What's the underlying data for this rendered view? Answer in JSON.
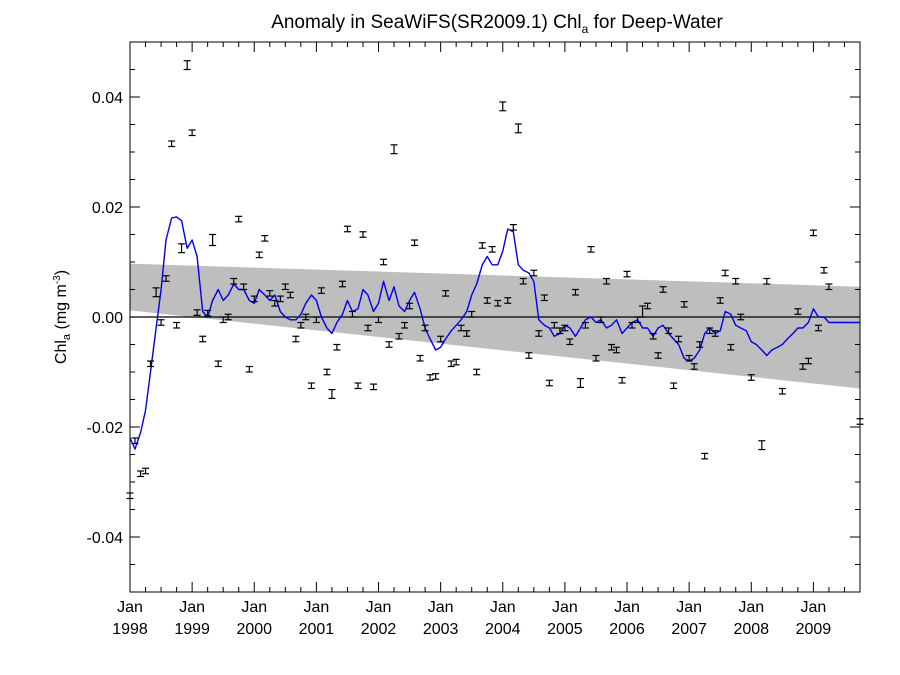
{
  "chart_data": {
    "type": "scatter",
    "title_main": "Anomaly in SeaWiFS(SR2009.1) Chl",
    "title_sub": "a",
    "title_tail": " for Deep-Water",
    "ylabel_main": "Chl",
    "ylabel_sub": "a",
    "ylabel_units_pre": " (mg m",
    "ylabel_units_sup": "-3",
    "ylabel_units_post": ")",
    "xlim": [
      1998.0,
      2009.75
    ],
    "ylim": [
      -0.05,
      0.05
    ],
    "yticks": [
      {
        "value": 0.04,
        "label": "0.04"
      },
      {
        "value": 0.02,
        "label": "0.02"
      },
      {
        "value": 0.0,
        "label": "0.00"
      },
      {
        "value": -0.02,
        "label": "-0.02"
      },
      {
        "value": -0.04,
        "label": "-0.04"
      }
    ],
    "xticks": [
      {
        "value": 1998,
        "month": "Jan",
        "year": "1998"
      },
      {
        "value": 1999,
        "month": "Jan",
        "year": "1999"
      },
      {
        "value": 2000,
        "month": "Jan",
        "year": "2000"
      },
      {
        "value": 2001,
        "month": "Jan",
        "year": "2001"
      },
      {
        "value": 2002,
        "month": "Jan",
        "year": "2002"
      },
      {
        "value": 2003,
        "month": "Jan",
        "year": "2003"
      },
      {
        "value": 2004,
        "month": "Jan",
        "year": "2004"
      },
      {
        "value": 2005,
        "month": "Jan",
        "year": "2005"
      },
      {
        "value": 2006,
        "month": "Jan",
        "year": "2006"
      },
      {
        "value": 2007,
        "month": "Jan",
        "year": "2007"
      },
      {
        "value": 2008,
        "month": "Jan",
        "year": "2008"
      },
      {
        "value": 2009,
        "month": "Jan",
        "year": "2009"
      }
    ],
    "zero_line": 0.0,
    "confidence_band": {
      "x": [
        1998.0,
        2009.75
      ],
      "upper": [
        0.0097,
        0.0055
      ],
      "lower": [
        0.0012,
        -0.013
      ]
    },
    "series": [
      {
        "type": "errorbar",
        "color": "#000000",
        "points": [
          [
            1998.0,
            -0.0325,
            0.0005
          ],
          [
            1998.08,
            -0.0225,
            0.0005
          ],
          [
            1998.17,
            -0.0285,
            0.0005
          ],
          [
            1998.25,
            -0.028,
            0.0005
          ],
          [
            1998.33,
            -0.0085,
            0.0005
          ],
          [
            1998.42,
            0.0045,
            0.0008
          ],
          [
            1998.5,
            -0.001,
            0.0005
          ],
          [
            1998.58,
            0.007,
            0.0005
          ],
          [
            1998.67,
            0.0315,
            0.0005
          ],
          [
            1998.75,
            -0.0015,
            0.0005
          ],
          [
            1998.83,
            0.0125,
            0.0008
          ],
          [
            1998.92,
            0.0458,
            0.0008
          ],
          [
            1999.0,
            0.0335,
            0.0005
          ],
          [
            1999.08,
            0.0008,
            0.0005
          ],
          [
            1999.17,
            -0.004,
            0.0005
          ],
          [
            1999.25,
            0.0007,
            0.0005
          ],
          [
            1999.33,
            0.014,
            0.001
          ],
          [
            1999.42,
            -0.0085,
            0.0005
          ],
          [
            1999.5,
            -0.0005,
            0.0005
          ],
          [
            1999.58,
            0.0,
            0.0005
          ],
          [
            1999.67,
            0.0065,
            0.0005
          ],
          [
            1999.75,
            0.0178,
            0.0005
          ],
          [
            1999.83,
            0.0055,
            0.0005
          ],
          [
            1999.92,
            -0.0095,
            0.0005
          ],
          [
            2000.0,
            0.0033,
            0.0005
          ],
          [
            2000.08,
            0.0113,
            0.0005
          ],
          [
            2000.17,
            0.0143,
            0.0005
          ],
          [
            2000.25,
            0.0043,
            0.0005
          ],
          [
            2000.33,
            0.0025,
            0.0005
          ],
          [
            2000.42,
            0.0033,
            0.0005
          ],
          [
            2000.5,
            0.0055,
            0.0005
          ],
          [
            2000.58,
            0.004,
            0.0005
          ],
          [
            2000.67,
            -0.004,
            0.0005
          ],
          [
            2000.75,
            -0.0015,
            0.0005
          ],
          [
            2000.83,
            0.0,
            0.0005
          ],
          [
            2000.92,
            -0.0125,
            0.0005
          ],
          [
            2001.0,
            -0.0005,
            0.0005
          ],
          [
            2001.08,
            0.0048,
            0.0005
          ],
          [
            2001.17,
            -0.01,
            0.0005
          ],
          [
            2001.25,
            -0.014,
            0.0008
          ],
          [
            2001.33,
            -0.0055,
            0.0005
          ],
          [
            2001.42,
            0.006,
            0.0005
          ],
          [
            2001.5,
            0.016,
            0.0005
          ],
          [
            2001.58,
            0.0005,
            0.0005
          ],
          [
            2001.67,
            -0.0125,
            0.0005
          ],
          [
            2001.75,
            0.015,
            0.0005
          ],
          [
            2001.83,
            -0.002,
            0.0005
          ],
          [
            2001.92,
            -0.0127,
            0.0005
          ],
          [
            2002.0,
            -0.0005,
            0.0005
          ],
          [
            2002.08,
            0.01,
            0.0005
          ],
          [
            2002.17,
            -0.005,
            0.0005
          ],
          [
            2002.25,
            0.0305,
            0.0008
          ],
          [
            2002.33,
            -0.0035,
            0.0005
          ],
          [
            2002.42,
            -0.0015,
            0.0005
          ],
          [
            2002.5,
            0.002,
            0.0005
          ],
          [
            2002.58,
            0.0135,
            0.0005
          ],
          [
            2002.67,
            -0.0075,
            0.0005
          ],
          [
            2002.75,
            -0.002,
            0.0005
          ],
          [
            2002.83,
            -0.011,
            0.0005
          ],
          [
            2002.92,
            -0.0108,
            0.0005
          ],
          [
            2003.0,
            -0.004,
            0.0005
          ],
          [
            2003.08,
            0.0043,
            0.0005
          ],
          [
            2003.17,
            -0.0085,
            0.0005
          ],
          [
            2003.25,
            -0.0082,
            0.0005
          ],
          [
            2003.33,
            -0.002,
            0.0005
          ],
          [
            2003.42,
            -0.003,
            0.0005
          ],
          [
            2003.5,
            0.0005,
            0.0005
          ],
          [
            2003.58,
            -0.01,
            0.0005
          ],
          [
            2003.67,
            0.013,
            0.0005
          ],
          [
            2003.75,
            0.003,
            0.0005
          ],
          [
            2003.83,
            0.0123,
            0.0005
          ],
          [
            2003.92,
            0.0025,
            0.0005
          ],
          [
            2004.0,
            0.0383,
            0.0008
          ],
          [
            2004.08,
            0.003,
            0.0005
          ],
          [
            2004.17,
            0.0163,
            0.0005
          ],
          [
            2004.25,
            0.0343,
            0.0008
          ],
          [
            2004.33,
            0.0065,
            0.0005
          ],
          [
            2004.42,
            -0.007,
            0.0005
          ],
          [
            2004.5,
            0.008,
            0.0005
          ],
          [
            2004.58,
            -0.003,
            0.0005
          ],
          [
            2004.67,
            0.0035,
            0.0005
          ],
          [
            2004.75,
            -0.012,
            0.0005
          ],
          [
            2004.83,
            -0.0015,
            0.0005
          ],
          [
            2004.92,
            -0.0025,
            0.0005
          ],
          [
            2005.0,
            -0.002,
            0.0005
          ],
          [
            2005.08,
            -0.0045,
            0.0005
          ],
          [
            2005.17,
            0.0045,
            0.0005
          ],
          [
            2005.25,
            -0.012,
            0.0008
          ],
          [
            2005.33,
            -0.0015,
            0.0005
          ],
          [
            2005.42,
            0.0123,
            0.0005
          ],
          [
            2005.5,
            -0.0075,
            0.0005
          ],
          [
            2005.58,
            -0.0005,
            0.0005
          ],
          [
            2005.67,
            0.0065,
            0.0005
          ],
          [
            2005.75,
            -0.0055,
            0.0005
          ],
          [
            2005.83,
            -0.006,
            0.0005
          ],
          [
            2005.92,
            -0.0115,
            0.0005
          ],
          [
            2006.0,
            0.0078,
            0.0005
          ],
          [
            2006.08,
            -0.0015,
            0.0005
          ],
          [
            2006.17,
            -0.0005,
            0.0005
          ],
          [
            2006.25,
            0.001,
            0.001
          ],
          [
            2006.33,
            0.002,
            0.0005
          ],
          [
            2006.42,
            -0.0035,
            0.0005
          ],
          [
            2006.5,
            -0.007,
            0.0005
          ],
          [
            2006.58,
            0.005,
            0.0005
          ],
          [
            2006.67,
            -0.0025,
            0.0005
          ],
          [
            2006.75,
            -0.0125,
            0.0005
          ],
          [
            2006.83,
            -0.004,
            0.0005
          ],
          [
            2006.92,
            0.0023,
            0.0005
          ],
          [
            2007.0,
            -0.0075,
            0.0005
          ],
          [
            2007.08,
            -0.009,
            0.0005
          ],
          [
            2007.17,
            -0.005,
            0.0005
          ],
          [
            2007.25,
            -0.0253,
            0.0005
          ],
          [
            2007.33,
            -0.0025,
            0.0005
          ],
          [
            2007.42,
            -0.003,
            0.0005
          ],
          [
            2007.5,
            0.003,
            0.0005
          ],
          [
            2007.58,
            0.008,
            0.0005
          ],
          [
            2007.67,
            -0.0055,
            0.0005
          ],
          [
            2007.75,
            0.0065,
            0.0005
          ],
          [
            2007.83,
            0.0,
            0.0005
          ],
          [
            2008.0,
            -0.011,
            0.0005
          ],
          [
            2008.17,
            -0.0233,
            0.0008
          ],
          [
            2008.25,
            0.0065,
            0.0005
          ],
          [
            2008.5,
            -0.0135,
            0.0005
          ],
          [
            2008.75,
            0.001,
            0.0005
          ],
          [
            2008.83,
            -0.009,
            0.0005
          ],
          [
            2008.92,
            -0.008,
            0.0005
          ],
          [
            2009.0,
            0.0153,
            0.0005
          ],
          [
            2009.08,
            -0.002,
            0.0005
          ],
          [
            2009.17,
            0.0085,
            0.0005
          ],
          [
            2009.25,
            0.0055,
            0.0005
          ],
          [
            2009.75,
            -0.019,
            0.0005
          ]
        ]
      },
      {
        "type": "line",
        "color": "#0000ee",
        "x": [
          1998.0,
          1998.08,
          1998.17,
          1998.25,
          1998.33,
          1998.42,
          1998.5,
          1998.58,
          1998.67,
          1998.75,
          1998.83,
          1998.92,
          1999.0,
          1999.08,
          1999.17,
          1999.25,
          1999.33,
          1999.42,
          1999.5,
          1999.58,
          1999.67,
          1999.75,
          1999.83,
          1999.92,
          2000.0,
          2000.08,
          2000.17,
          2000.25,
          2000.33,
          2000.42,
          2000.5,
          2000.58,
          2000.67,
          2000.75,
          2000.83,
          2000.92,
          2001.0,
          2001.08,
          2001.17,
          2001.25,
          2001.33,
          2001.42,
          2001.5,
          2001.58,
          2001.67,
          2001.75,
          2001.83,
          2001.92,
          2002.0,
          2002.08,
          2002.17,
          2002.25,
          2002.33,
          2002.42,
          2002.5,
          2002.58,
          2002.67,
          2002.75,
          2002.83,
          2002.92,
          2003.0,
          2003.08,
          2003.17,
          2003.25,
          2003.33,
          2003.42,
          2003.5,
          2003.58,
          2003.67,
          2003.75,
          2003.83,
          2003.92,
          2004.0,
          2004.08,
          2004.17,
          2004.25,
          2004.33,
          2004.42,
          2004.5,
          2004.58,
          2004.67,
          2004.75,
          2004.83,
          2004.92,
          2005.0,
          2005.08,
          2005.17,
          2005.25,
          2005.33,
          2005.42,
          2005.5,
          2005.58,
          2005.67,
          2005.75,
          2005.83,
          2005.92,
          2006.0,
          2006.08,
          2006.17,
          2006.25,
          2006.33,
          2006.42,
          2006.5,
          2006.58,
          2006.67,
          2006.75,
          2006.83,
          2006.92,
          2007.0,
          2007.08,
          2007.17,
          2007.25,
          2007.33,
          2007.42,
          2007.5,
          2007.58,
          2007.67,
          2007.75,
          2007.83,
          2007.92,
          2008.0,
          2008.08,
          2008.17,
          2008.25,
          2008.33,
          2008.42,
          2008.5,
          2008.58,
          2008.67,
          2008.75,
          2008.83,
          2008.92,
          2009.0,
          2009.08,
          2009.17,
          2009.25,
          2009.75
        ],
        "y": [
          -0.022,
          -0.024,
          -0.021,
          -0.017,
          -0.01,
          -0.002,
          0.005,
          0.014,
          0.018,
          0.0182,
          0.0175,
          0.0125,
          0.014,
          0.011,
          0.001,
          0.0,
          0.003,
          0.005,
          0.003,
          0.004,
          0.006,
          0.005,
          0.005,
          0.003,
          0.0025,
          0.005,
          0.004,
          0.003,
          0.004,
          0.001,
          0.0,
          -0.0005,
          -0.0005,
          0.0005,
          0.0025,
          0.004,
          0.003,
          0.0,
          -0.002,
          -0.003,
          -0.001,
          0.0005,
          0.003,
          0.001,
          0.0015,
          0.005,
          0.004,
          0.001,
          0.0025,
          0.0065,
          0.003,
          0.0055,
          0.002,
          0.001,
          0.003,
          0.0045,
          0.0015,
          -0.002,
          -0.004,
          -0.006,
          -0.0055,
          -0.004,
          -0.0025,
          -0.0015,
          -0.0005,
          0.001,
          0.004,
          0.006,
          0.0095,
          0.011,
          0.0095,
          0.0095,
          0.012,
          0.016,
          0.0155,
          0.0095,
          0.0085,
          0.008,
          0.0065,
          -0.0005,
          -0.0015,
          -0.002,
          -0.0035,
          -0.003,
          -0.0015,
          -0.002,
          -0.0035,
          -0.002,
          -0.0005,
          0.0,
          -0.001,
          -0.0005,
          -0.002,
          -0.0015,
          -0.0005,
          -0.003,
          -0.002,
          -0.001,
          -0.0005,
          -0.002,
          -0.002,
          -0.0035,
          -0.002,
          -0.0015,
          -0.003,
          -0.004,
          -0.005,
          -0.0075,
          -0.008,
          -0.0075,
          -0.006,
          -0.003,
          -0.002,
          -0.003,
          -0.0025,
          0.001,
          0.0005,
          -0.0015,
          -0.002,
          -0.0025,
          -0.0045,
          -0.005,
          -0.006,
          -0.007,
          -0.006,
          -0.0055,
          -0.005,
          -0.004,
          -0.003,
          -0.002,
          -0.002,
          -0.001,
          0.0015,
          0.0,
          0.0,
          -0.001,
          -0.001
        ]
      }
    ]
  }
}
